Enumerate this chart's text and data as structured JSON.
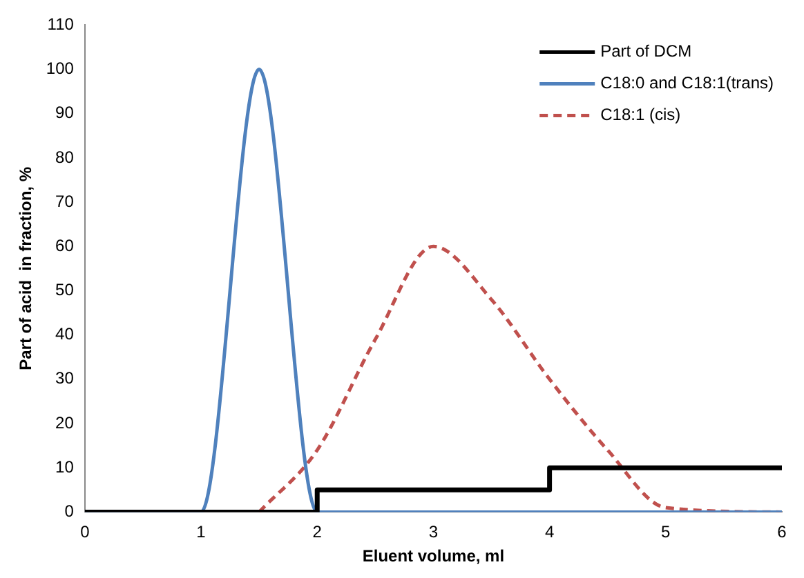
{
  "chart_data": {
    "type": "line",
    "xlabel": "Eluent volume, ml",
    "ylabel": "Part of acid  in fraction, %",
    "xlim": [
      0,
      6
    ],
    "xticks": [
      0,
      1,
      2,
      3,
      4,
      5,
      6
    ],
    "ylim": [
      0,
      110
    ],
    "yticks": [
      0,
      10,
      20,
      30,
      40,
      50,
      60,
      70,
      80,
      90,
      100,
      110
    ],
    "grid": false,
    "legend": "top right",
    "marker": "none",
    "series": [
      {
        "name": "Part of DCM",
        "type": "step",
        "color": "#000000",
        "x": [
          0,
          2,
          4,
          6
        ],
        "values": [
          0,
          5,
          10,
          10
        ]
      },
      {
        "name": "C18:0 and C18:1(trans)",
        "color": "#4f81bd",
        "x": [
          0,
          0.5,
          1,
          1.5,
          2,
          2.5,
          3,
          3.5,
          4,
          4.5,
          5,
          5.5,
          6
        ],
        "values": [
          0,
          0,
          0,
          100,
          0,
          0,
          0,
          0,
          0,
          0,
          0,
          0,
          0
        ]
      },
      {
        "name": "C18:1 (cis)",
        "color": "#c0504d",
        "line_style": "dashed",
        "x": [
          1.5,
          2,
          2.5,
          3,
          3.5,
          4,
          4.5,
          5,
          6
        ],
        "values": [
          0,
          14,
          39,
          60,
          48,
          30,
          14,
          1,
          0
        ]
      }
    ]
  }
}
